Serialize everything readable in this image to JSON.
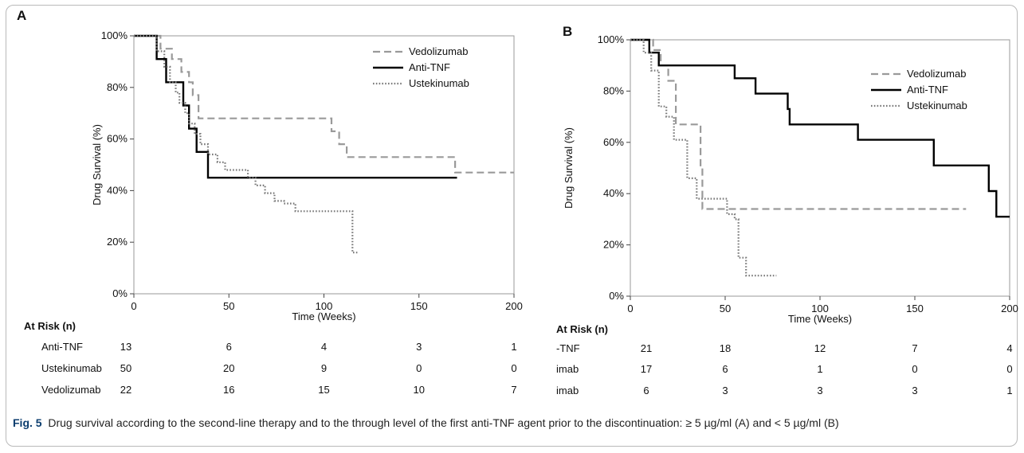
{
  "caption": {
    "fig_label": "Fig. 5",
    "text": "Drug survival according to the second-line therapy and to the through level of the first anti-TNF agent prior to the discontinuation: ≥ 5 µg/ml (A) and < 5 µg/ml (B)"
  },
  "styles": {
    "Vedolizumab": "dashed",
    "Anti-TNF": "solid",
    "Ustekinumab": "dotted"
  },
  "colors": {
    "Vedolizumab": "#9a9a9a",
    "Anti-TNF": "#000000",
    "Ustekinumab": "#777777"
  },
  "chart_data": [
    {
      "type": "line",
      "panel": "A",
      "xlabel": "Time (Weeks)",
      "ylabel": "Drug Survival (%)",
      "xlim": [
        0,
        200
      ],
      "ylim": [
        0,
        100
      ],
      "xticks": [
        "0",
        "50",
        "100",
        "150",
        "200"
      ],
      "yticks": [
        "0%",
        "20%",
        "40%",
        "60%",
        "80%",
        "100%"
      ],
      "legend": [
        "Vedolizumab",
        "Anti-TNF",
        "Ustekinumab"
      ],
      "legend_position": "top-right",
      "series": [
        {
          "name": "Vedolizumab",
          "points": [
            [
              0,
              100
            ],
            [
              14,
              100
            ],
            [
              14,
              95
            ],
            [
              20,
              95
            ],
            [
              20,
              91
            ],
            [
              25,
              91
            ],
            [
              25,
              86
            ],
            [
              29,
              86
            ],
            [
              29,
              82
            ],
            [
              31,
              82
            ],
            [
              31,
              77
            ],
            [
              34,
              77
            ],
            [
              34,
              68
            ],
            [
              104,
              68
            ],
            [
              104,
              63
            ],
            [
              108,
              63
            ],
            [
              108,
              58
            ],
            [
              112,
              58
            ],
            [
              112,
              53
            ],
            [
              169,
              53
            ],
            [
              169,
              47
            ],
            [
              200,
              47
            ]
          ]
        },
        {
          "name": "Anti-TNF",
          "points": [
            [
              0,
              100
            ],
            [
              12,
              100
            ],
            [
              12,
              91
            ],
            [
              17,
              91
            ],
            [
              17,
              82
            ],
            [
              26,
              82
            ],
            [
              26,
              73
            ],
            [
              29,
              73
            ],
            [
              29,
              64
            ],
            [
              33,
              64
            ],
            [
              33,
              55
            ],
            [
              39,
              55
            ],
            [
              39,
              45
            ],
            [
              170,
              45
            ]
          ]
        },
        {
          "name": "Ustekinumab",
          "points": [
            [
              0,
              100
            ],
            [
              12,
              100
            ],
            [
              12,
              94
            ],
            [
              16,
              94
            ],
            [
              16,
              88
            ],
            [
              19,
              88
            ],
            [
              19,
              82
            ],
            [
              22,
              82
            ],
            [
              22,
              78
            ],
            [
              24,
              78
            ],
            [
              24,
              74
            ],
            [
              27,
              74
            ],
            [
              27,
              70
            ],
            [
              29,
              70
            ],
            [
              29,
              66
            ],
            [
              32,
              66
            ],
            [
              32,
              62
            ],
            [
              35,
              62
            ],
            [
              35,
              58
            ],
            [
              39,
              58
            ],
            [
              39,
              54
            ],
            [
              44,
              54
            ],
            [
              44,
              51
            ],
            [
              48,
              51
            ],
            [
              48,
              48
            ],
            [
              60,
              48
            ],
            [
              60,
              45
            ],
            [
              64,
              45
            ],
            [
              64,
              42
            ],
            [
              69,
              42
            ],
            [
              69,
              39
            ],
            [
              74,
              39
            ],
            [
              74,
              36
            ],
            [
              79,
              36
            ],
            [
              79,
              35
            ],
            [
              85,
              35
            ],
            [
              85,
              32
            ],
            [
              115,
              32
            ],
            [
              115,
              16
            ],
            [
              118,
              16
            ]
          ]
        }
      ],
      "risk_table": {
        "header": "At Risk (n)",
        "rows": [
          {
            "label": "Anti-TNF",
            "values": [
              "13",
              "6",
              "4",
              "3",
              "1"
            ]
          },
          {
            "label": "Ustekinumab",
            "values": [
              "50",
              "20",
              "9",
              "0",
              "0"
            ]
          },
          {
            "label": "Vedolizumab",
            "values": [
              "22",
              "16",
              "15",
              "10",
              "7"
            ]
          }
        ]
      }
    },
    {
      "type": "line",
      "panel": "B",
      "xlabel": "Time (Weeks)",
      "ylabel": "Drug Survival (%)",
      "xlim": [
        0,
        200
      ],
      "ylim": [
        0,
        100
      ],
      "xticks": [
        "0",
        "50",
        "100",
        "150",
        "200"
      ],
      "yticks": [
        "0%",
        "20%",
        "40%",
        "60%",
        "80%",
        "100%"
      ],
      "legend": [
        "Vedolizumab",
        "Anti-TNF",
        "Ustekinumab"
      ],
      "legend_position": "top-right",
      "series": [
        {
          "name": "Vedolizumab",
          "points": [
            [
              0,
              100
            ],
            [
              12,
              100
            ],
            [
              12,
              96
            ],
            [
              16,
              96
            ],
            [
              16,
              90
            ],
            [
              20,
              90
            ],
            [
              20,
              84
            ],
            [
              24,
              84
            ],
            [
              24,
              67
            ],
            [
              37,
              67
            ],
            [
              37,
              50
            ],
            [
              38,
              50
            ],
            [
              38,
              34
            ],
            [
              177,
              34
            ]
          ]
        },
        {
          "name": "Anti-TNF",
          "points": [
            [
              0,
              100
            ],
            [
              10,
              100
            ],
            [
              10,
              95
            ],
            [
              15,
              95
            ],
            [
              15,
              90
            ],
            [
              55,
              90
            ],
            [
              55,
              85
            ],
            [
              66,
              85
            ],
            [
              66,
              79
            ],
            [
              83,
              79
            ],
            [
              83,
              73
            ],
            [
              84,
              73
            ],
            [
              84,
              67
            ],
            [
              120,
              67
            ],
            [
              120,
              61
            ],
            [
              160,
              61
            ],
            [
              160,
              51
            ],
            [
              189,
              51
            ],
            [
              189,
              41
            ],
            [
              193,
              41
            ],
            [
              193,
              31
            ],
            [
              200,
              31
            ]
          ]
        },
        {
          "name": "Ustekinumab",
          "points": [
            [
              0,
              100
            ],
            [
              7,
              100
            ],
            [
              7,
              95
            ],
            [
              11,
              95
            ],
            [
              11,
              88
            ],
            [
              15,
              88
            ],
            [
              15,
              74
            ],
            [
              19,
              74
            ],
            [
              19,
              70
            ],
            [
              23,
              70
            ],
            [
              23,
              61
            ],
            [
              30,
              61
            ],
            [
              30,
              46
            ],
            [
              35,
              46
            ],
            [
              35,
              38
            ],
            [
              51,
              38
            ],
            [
              51,
              32
            ],
            [
              55,
              32
            ],
            [
              55,
              30
            ],
            [
              57,
              30
            ],
            [
              57,
              15
            ],
            [
              61,
              15
            ],
            [
              61,
              8
            ],
            [
              77,
              8
            ]
          ]
        }
      ],
      "risk_table": {
        "header": "At Risk (n)",
        "rows": [
          {
            "label": "-TNF",
            "values": [
              "21",
              "18",
              "12",
              "7",
              "4"
            ]
          },
          {
            "label": "imab",
            "values": [
              "17",
              "6",
              "1",
              "0",
              "0"
            ]
          },
          {
            "label": "imab",
            "values": [
              "6",
              "3",
              "3",
              "3",
              "1"
            ]
          }
        ]
      }
    }
  ]
}
